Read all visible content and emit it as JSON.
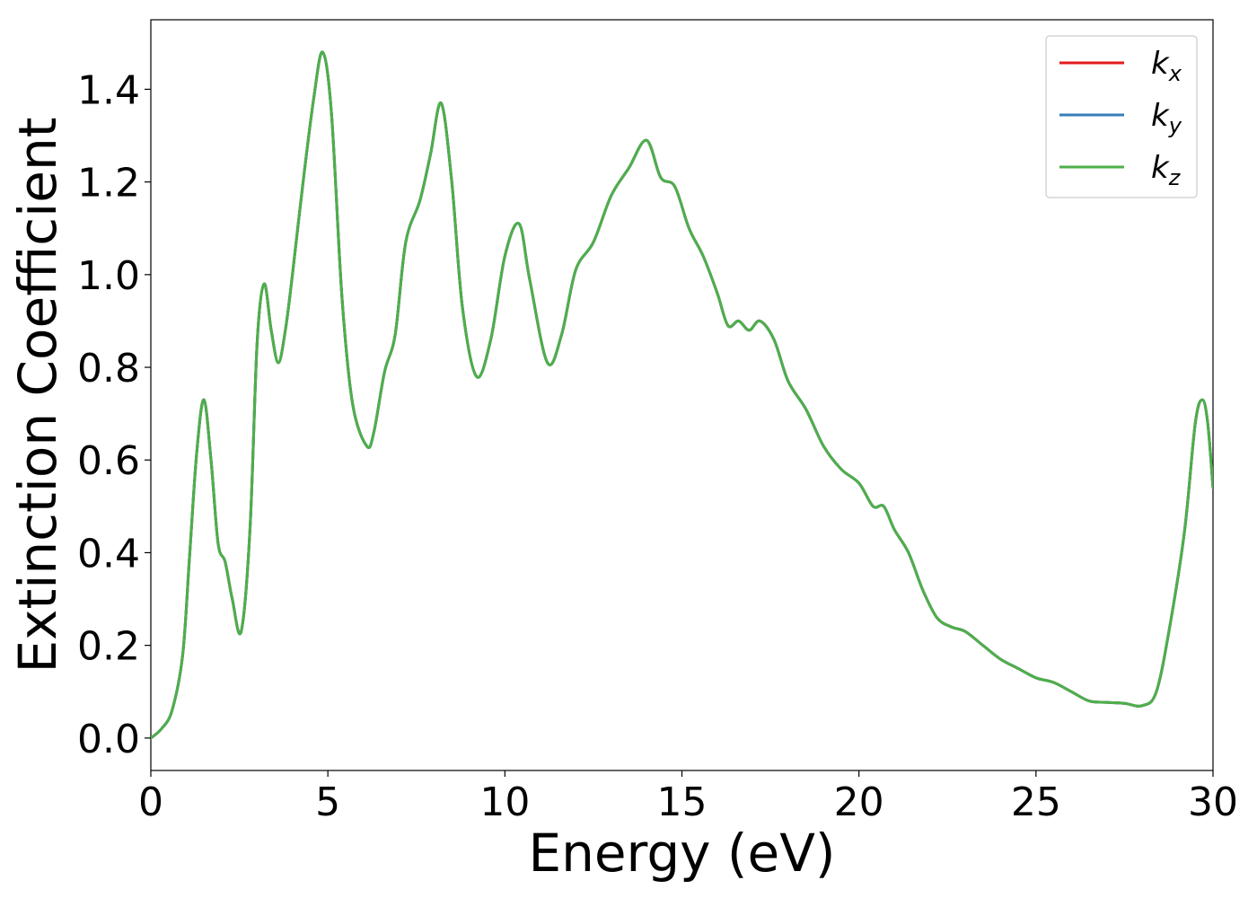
{
  "chart_data": {
    "type": "line",
    "xlabel": "Energy (eV)",
    "ylabel": "Extinction Coefficient",
    "xlim": [
      0,
      30
    ],
    "ylim": [
      -0.07,
      1.55
    ],
    "xticks": [
      0,
      5,
      10,
      15,
      20,
      25,
      30
    ],
    "xtick_labels": [
      "0",
      "5",
      "10",
      "15",
      "20",
      "25",
      "30"
    ],
    "yticks": [
      0.0,
      0.2,
      0.4,
      0.6,
      0.8,
      1.0,
      1.2,
      1.4
    ],
    "ytick_labels": [
      "0.0",
      "0.2",
      "0.4",
      "0.6",
      "0.8",
      "1.0",
      "1.2",
      "1.4"
    ],
    "grid": false,
    "legend_position": "top-right",
    "x": [
      0,
      0.3,
      0.6,
      0.9,
      1.1,
      1.3,
      1.5,
      1.7,
      1.9,
      2.1,
      2.3,
      2.55,
      2.8,
      3.0,
      3.2,
      3.4,
      3.6,
      3.8,
      4.0,
      4.3,
      4.6,
      4.85,
      5.1,
      5.4,
      5.7,
      6.1,
      6.3,
      6.6,
      6.9,
      7.2,
      7.6,
      7.9,
      8.2,
      8.5,
      8.8,
      9.2,
      9.6,
      10.0,
      10.4,
      10.7,
      11.2,
      11.6,
      12.0,
      12.5,
      13.0,
      13.5,
      14.0,
      14.4,
      14.8,
      15.2,
      15.6,
      16.0,
      16.3,
      16.6,
      16.9,
      17.2,
      17.6,
      18.0,
      18.5,
      19.0,
      19.5,
      20.0,
      20.4,
      20.7,
      21.0,
      21.4,
      21.8,
      22.2,
      22.6,
      23.0,
      23.5,
      24.0,
      24.5,
      25.0,
      25.5,
      26.0,
      26.5,
      27.0,
      27.5,
      28.0,
      28.4,
      28.8,
      29.2,
      29.5,
      29.7,
      29.85,
      30.0
    ],
    "series": [
      {
        "name": "k_x",
        "label_base": "k",
        "label_sub": "x",
        "color": "#e41a1c",
        "values": [
          0.0,
          0.02,
          0.06,
          0.18,
          0.4,
          0.62,
          0.73,
          0.6,
          0.42,
          0.38,
          0.3,
          0.23,
          0.45,
          0.85,
          0.98,
          0.88,
          0.81,
          0.88,
          1.0,
          1.2,
          1.38,
          1.48,
          1.35,
          0.95,
          0.72,
          0.63,
          0.66,
          0.79,
          0.87,
          1.07,
          1.16,
          1.26,
          1.37,
          1.2,
          0.93,
          0.78,
          0.86,
          1.04,
          1.11,
          0.99,
          0.81,
          0.87,
          1.01,
          1.07,
          1.17,
          1.23,
          1.29,
          1.21,
          1.19,
          1.1,
          1.04,
          0.96,
          0.89,
          0.9,
          0.88,
          0.9,
          0.86,
          0.77,
          0.71,
          0.63,
          0.58,
          0.55,
          0.5,
          0.5,
          0.45,
          0.4,
          0.32,
          0.26,
          0.24,
          0.23,
          0.2,
          0.17,
          0.15,
          0.13,
          0.12,
          0.1,
          0.08,
          0.077,
          0.075,
          0.07,
          0.1,
          0.25,
          0.45,
          0.68,
          0.73,
          0.68,
          0.54
        ]
      },
      {
        "name": "k_y",
        "label_base": "k",
        "label_sub": "y",
        "color": "#377eb8",
        "values": [
          0.0,
          0.02,
          0.06,
          0.18,
          0.4,
          0.62,
          0.73,
          0.6,
          0.42,
          0.38,
          0.3,
          0.23,
          0.45,
          0.85,
          0.98,
          0.88,
          0.81,
          0.88,
          1.0,
          1.2,
          1.38,
          1.48,
          1.35,
          0.95,
          0.72,
          0.63,
          0.66,
          0.79,
          0.87,
          1.07,
          1.16,
          1.26,
          1.37,
          1.2,
          0.93,
          0.78,
          0.86,
          1.04,
          1.11,
          0.99,
          0.81,
          0.87,
          1.01,
          1.07,
          1.17,
          1.23,
          1.29,
          1.21,
          1.19,
          1.1,
          1.04,
          0.96,
          0.89,
          0.9,
          0.88,
          0.9,
          0.86,
          0.77,
          0.71,
          0.63,
          0.58,
          0.55,
          0.5,
          0.5,
          0.45,
          0.4,
          0.32,
          0.26,
          0.24,
          0.23,
          0.2,
          0.17,
          0.15,
          0.13,
          0.12,
          0.1,
          0.08,
          0.077,
          0.075,
          0.07,
          0.1,
          0.25,
          0.45,
          0.68,
          0.73,
          0.68,
          0.54
        ]
      },
      {
        "name": "k_z",
        "label_base": "k",
        "label_sub": "z",
        "color": "#4daf4a",
        "values": [
          0.0,
          0.02,
          0.06,
          0.18,
          0.4,
          0.62,
          0.73,
          0.6,
          0.42,
          0.38,
          0.3,
          0.23,
          0.45,
          0.85,
          0.98,
          0.88,
          0.81,
          0.88,
          1.0,
          1.2,
          1.38,
          1.48,
          1.35,
          0.95,
          0.72,
          0.63,
          0.66,
          0.79,
          0.87,
          1.07,
          1.16,
          1.26,
          1.37,
          1.2,
          0.93,
          0.78,
          0.86,
          1.04,
          1.11,
          0.99,
          0.81,
          0.87,
          1.01,
          1.07,
          1.17,
          1.23,
          1.29,
          1.21,
          1.19,
          1.1,
          1.04,
          0.96,
          0.89,
          0.9,
          0.88,
          0.9,
          0.86,
          0.77,
          0.71,
          0.63,
          0.58,
          0.55,
          0.5,
          0.5,
          0.45,
          0.4,
          0.32,
          0.26,
          0.24,
          0.23,
          0.2,
          0.17,
          0.15,
          0.13,
          0.12,
          0.1,
          0.08,
          0.077,
          0.075,
          0.07,
          0.1,
          0.25,
          0.45,
          0.68,
          0.73,
          0.68,
          0.54
        ]
      }
    ]
  }
}
